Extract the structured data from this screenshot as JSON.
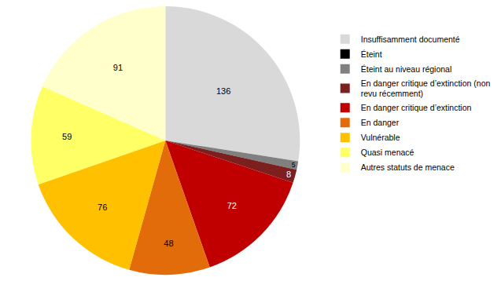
{
  "chart_data": {
    "type": "pie",
    "categories": [
      "Insuffisamment documenté",
      "Éteint",
      "Éteint au niveau régional",
      "En danger critique d’extinction (non revu récemment)",
      "En danger critique d’extinction",
      "En danger",
      "Vulnérable",
      "Quasi menacé",
      "Autres statuts de menace"
    ],
    "values": [
      136,
      0,
      5,
      8,
      72,
      48,
      76,
      59,
      91
    ],
    "colors": [
      "#d9d9d9",
      "#000000",
      "#808080",
      "#7b1f1f",
      "#c00000",
      "#e36c0a",
      "#ffc000",
      "#ffff66",
      "#ffffcc"
    ],
    "data_labels": true,
    "legend": "right"
  }
}
